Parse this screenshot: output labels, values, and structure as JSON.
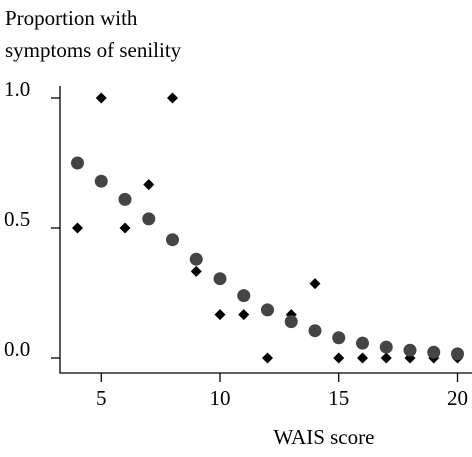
{
  "chart_data": {
    "type": "scatter",
    "title_line1": "Proportion with",
    "title_line2": "symptoms of senility",
    "xlabel": "WAIS score",
    "ylabel": "",
    "xlim": [
      4,
      20
    ],
    "ylim": [
      0,
      1
    ],
    "x_ticks": [
      5,
      10,
      15,
      20
    ],
    "y_ticks": [
      0.0,
      0.5,
      1.0
    ],
    "x_tick_labels": [
      "5",
      "10",
      "15",
      "20"
    ],
    "y_tick_labels": [
      "0.0",
      "0.5",
      "1.0"
    ],
    "grid": false,
    "legend": "none",
    "series": [
      {
        "marker": "diamond",
        "color": "#000000",
        "points": [
          {
            "x": 4,
            "y": 0.5
          },
          {
            "x": 5,
            "y": 1.0
          },
          {
            "x": 6,
            "y": 0.5
          },
          {
            "x": 7,
            "y": 0.667
          },
          {
            "x": 8,
            "y": 1.0
          },
          {
            "x": 9,
            "y": 0.333
          },
          {
            "x": 10,
            "y": 0.167
          },
          {
            "x": 11,
            "y": 0.167
          },
          {
            "x": 12,
            "y": 0.0
          },
          {
            "x": 13,
            "y": 0.167
          },
          {
            "x": 14,
            "y": 0.286
          },
          {
            "x": 15,
            "y": 0.0
          },
          {
            "x": 16,
            "y": 0.0
          },
          {
            "x": 17,
            "y": 0.0
          },
          {
            "x": 18,
            "y": 0.0
          },
          {
            "x": 19,
            "y": 0.0
          },
          {
            "x": 20,
            "y": 0.0
          }
        ]
      },
      {
        "marker": "circle",
        "color": "#444444",
        "points": [
          {
            "x": 4,
            "y": 0.75
          },
          {
            "x": 5,
            "y": 0.68
          },
          {
            "x": 6,
            "y": 0.61
          },
          {
            "x": 7,
            "y": 0.535
          },
          {
            "x": 8,
            "y": 0.455
          },
          {
            "x": 9,
            "y": 0.38
          },
          {
            "x": 10,
            "y": 0.305
          },
          {
            "x": 11,
            "y": 0.24
          },
          {
            "x": 12,
            "y": 0.185
          },
          {
            "x": 13,
            "y": 0.14
          },
          {
            "x": 14,
            "y": 0.105
          },
          {
            "x": 15,
            "y": 0.078
          },
          {
            "x": 16,
            "y": 0.057
          },
          {
            "x": 17,
            "y": 0.042
          },
          {
            "x": 18,
            "y": 0.03
          },
          {
            "x": 19,
            "y": 0.022
          },
          {
            "x": 20,
            "y": 0.016
          }
        ]
      }
    ]
  }
}
